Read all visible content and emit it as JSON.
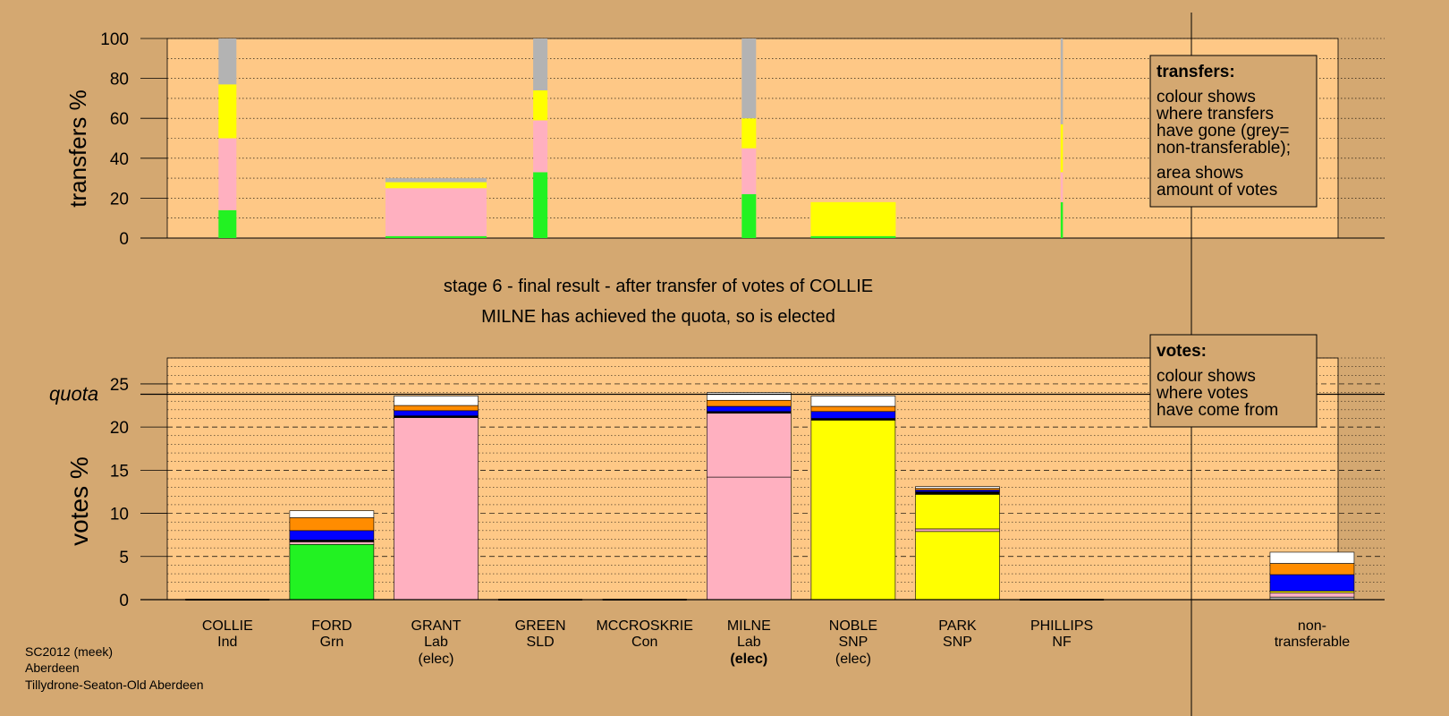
{
  "colors": {
    "background": "#d4a871",
    "plot_bg": "#fec886",
    "Ind": "#b3b3b3",
    "Grn": "#22f222",
    "Lab": "#ffb0c0",
    "SLD": "#ff8c00",
    "Con": "#0000ff",
    "SNP": "#ffff00",
    "NF": "#000000",
    "nontransferable": "#b3b3b3",
    "remaining": "#ffffff"
  },
  "labels": {
    "stage": "stage 6 - final result - after transfer of votes of COLLIE",
    "result": "MILNE has achieved the quota, so is elected",
    "transfers_title": "transfers:",
    "transfers_text": [
      "colour shows",
      "where transfers",
      "have gone (grey=",
      "non-transferable);"
    ],
    "transfers_text2": [
      "area shows",
      "amount of votes"
    ],
    "votes_title": "votes:",
    "votes_text": [
      "colour shows",
      "where votes",
      "have come from"
    ],
    "quota": "quota",
    "footer": [
      "SC2012 (meek)",
      "Aberdeen",
      "Tillydrone-Seaton-Old Aberdeen"
    ]
  },
  "chart_data": [
    {
      "type": "bar",
      "name": "transfers",
      "ylabel": "transfers %",
      "ylim": [
        0,
        100
      ],
      "yticks": [
        0,
        20,
        40,
        60,
        80,
        100
      ],
      "grid": true,
      "stack_order": [
        "Grn",
        "Lab",
        "SNP",
        "nontransferable"
      ],
      "columns": [
        {
          "key": "COLLIE",
          "segments": {
            "Grn": 14,
            "Lab": 36,
            "SNP": 27,
            "nontransferable": 23
          }
        },
        {
          "key": "GRANT",
          "segments": {
            "Grn": 1,
            "Lab": 24,
            "SNP": 3,
            "nontransferable": 2
          }
        },
        {
          "key": "GREEN",
          "segments": {
            "Grn": 33,
            "Lab": 26,
            "SNP": 15,
            "nontransferable": 26
          }
        },
        {
          "key": "MILNE",
          "segments": {
            "Grn": 22,
            "Lab": 23,
            "SNP": 15,
            "nontransferable": 40
          }
        },
        {
          "key": "NOBLE",
          "segments": {
            "Grn": 1,
            "SNP": 17
          }
        },
        {
          "key": "PHILLIPS",
          "segments": {
            "Grn": 18,
            "Lab": 15,
            "SNP": 24,
            "nontransferable": 43
          }
        }
      ]
    },
    {
      "type": "bar",
      "name": "votes",
      "ylabel": "votes %",
      "ylim": [
        0,
        28
      ],
      "yticks": [
        0,
        5,
        10,
        15,
        20,
        25
      ],
      "quota": 23.8,
      "grid": true,
      "categories": [
        {
          "key": "COLLIE",
          "name": "COLLIE",
          "party": "Ind",
          "note": ""
        },
        {
          "key": "FORD",
          "name": "FORD",
          "party": "Grn",
          "note": ""
        },
        {
          "key": "GRANT",
          "name": "GRANT",
          "party": "Lab",
          "note": "(elec)"
        },
        {
          "key": "GREEN",
          "name": "GREEN",
          "party": "SLD",
          "note": ""
        },
        {
          "key": "MCCROSKRIE",
          "name": "MCCROSKRIE",
          "party": "Con",
          "note": ""
        },
        {
          "key": "MILNE",
          "name": "MILNE",
          "party": "Lab",
          "note": "(elec)",
          "note_bold": true
        },
        {
          "key": "NOBLE",
          "name": "NOBLE",
          "party": "SNP",
          "note": "(elec)"
        },
        {
          "key": "PARK",
          "name": "PARK",
          "party": "SNP",
          "note": ""
        },
        {
          "key": "PHILLIPS",
          "name": "PHILLIPS",
          "party": "NF",
          "note": ""
        },
        {
          "key": "NT",
          "name": "non-",
          "party": "transferable",
          "note": ""
        }
      ],
      "bars": [
        {
          "key": "COLLIE",
          "segments": []
        },
        {
          "key": "FORD",
          "segments": [
            [
              "Grn",
              6.4
            ],
            [
              "Lab",
              0.3
            ],
            [
              "NF",
              0.2
            ],
            [
              "Con",
              1.1
            ],
            [
              "SLD",
              1.5
            ],
            [
              "remaining",
              0.8
            ]
          ]
        },
        {
          "key": "GRANT",
          "segments": [
            [
              "Lab",
              21.1
            ],
            [
              "NF",
              0.2
            ],
            [
              "Con",
              0.6
            ],
            [
              "SLD",
              0.6
            ],
            [
              "remaining",
              1.1
            ]
          ]
        },
        {
          "key": "GREEN",
          "segments": []
        },
        {
          "key": "MCCROSKRIE",
          "segments": []
        },
        {
          "key": "MILNE",
          "segments": [
            [
              "Lab",
              14.2
            ],
            [
              "Lab",
              7.4
            ],
            [
              "NF",
              0.2
            ],
            [
              "Con",
              0.6
            ],
            [
              "SLD",
              0.7
            ],
            [
              "remaining",
              0.9
            ]
          ]
        },
        {
          "key": "NOBLE",
          "segments": [
            [
              "SNP",
              20.8
            ],
            [
              "NF",
              0.2
            ],
            [
              "Con",
              0.8
            ],
            [
              "SLD",
              0.6
            ],
            [
              "remaining",
              1.2
            ]
          ]
        },
        {
          "key": "PARK",
          "segments": [
            [
              "SNP",
              7.9
            ],
            [
              "Lab",
              0.3
            ],
            [
              "SNP",
              4.0
            ],
            [
              "NF",
              0.3
            ],
            [
              "Con",
              0.2
            ],
            [
              "SLD",
              0.2
            ],
            [
              "remaining",
              0.2
            ]
          ]
        },
        {
          "key": "PHILLIPS",
          "segments": []
        },
        {
          "key": "NT",
          "segments": [
            [
              "Ind",
              0.3
            ],
            [
              "Lab",
              0.5
            ],
            [
              "SNP",
              0.2
            ],
            [
              "Con",
              1.9
            ],
            [
              "SLD",
              1.3
            ],
            [
              "remaining",
              1.3
            ]
          ]
        }
      ]
    }
  ]
}
